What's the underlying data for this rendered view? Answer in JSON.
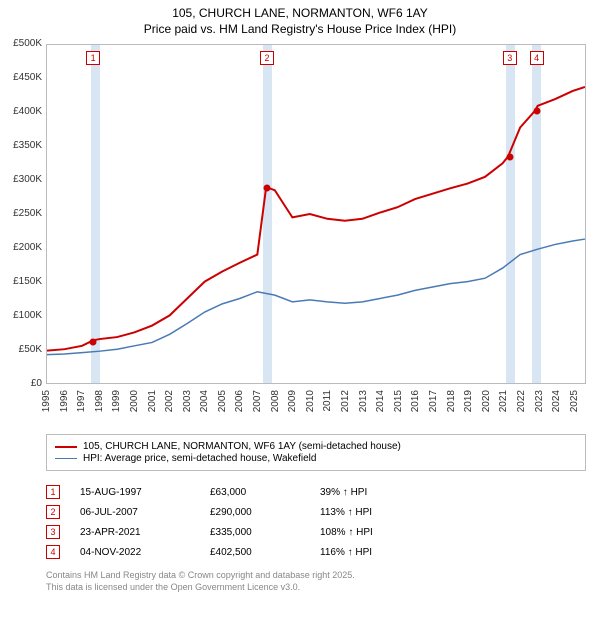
{
  "title_line1": "105, CHURCH LANE, NORMANTON, WF6 1AY",
  "title_line2": "Price paid vs. HM Land Registry's House Price Index (HPI)",
  "chart": {
    "type": "line",
    "x_min": 1995,
    "x_max": 2025.7,
    "y_min": 0,
    "y_max": 500000,
    "y_ticks": [
      0,
      50000,
      100000,
      150000,
      200000,
      250000,
      300000,
      350000,
      400000,
      450000,
      500000
    ],
    "y_tick_labels": [
      "£0",
      "£50K",
      "£100K",
      "£150K",
      "£200K",
      "£250K",
      "£300K",
      "£350K",
      "£400K",
      "£450K",
      "£500K"
    ],
    "x_ticks": [
      1995,
      1996,
      1997,
      1998,
      1999,
      2000,
      2001,
      2002,
      2003,
      2004,
      2005,
      2006,
      2007,
      2008,
      2009,
      2010,
      2011,
      2012,
      2013,
      2014,
      2015,
      2016,
      2017,
      2018,
      2019,
      2020,
      2021,
      2022,
      2023,
      2024,
      2025
    ],
    "series_red": {
      "label": "105, CHURCH LANE, NORMANTON, WF6 1AY (semi-detached house)",
      "color": "#cc0000",
      "width": 2,
      "data": [
        [
          1995,
          48000
        ],
        [
          1996,
          50000
        ],
        [
          1997,
          55000
        ],
        [
          1997.62,
          63000
        ],
        [
          1998,
          65000
        ],
        [
          1999,
          68000
        ],
        [
          2000,
          75000
        ],
        [
          2001,
          85000
        ],
        [
          2002,
          100000
        ],
        [
          2003,
          125000
        ],
        [
          2004,
          150000
        ],
        [
          2005,
          165000
        ],
        [
          2006,
          178000
        ],
        [
          2007,
          190000
        ],
        [
          2007.51,
          290000
        ],
        [
          2008,
          285000
        ],
        [
          2008.5,
          265000
        ],
        [
          2009,
          245000
        ],
        [
          2010,
          250000
        ],
        [
          2011,
          243000
        ],
        [
          2012,
          240000
        ],
        [
          2013,
          243000
        ],
        [
          2014,
          252000
        ],
        [
          2015,
          260000
        ],
        [
          2016,
          272000
        ],
        [
          2017,
          280000
        ],
        [
          2018,
          288000
        ],
        [
          2019,
          295000
        ],
        [
          2020,
          305000
        ],
        [
          2021,
          325000
        ],
        [
          2021.31,
          335000
        ],
        [
          2022,
          378000
        ],
        [
          2022.84,
          402500
        ],
        [
          2023,
          410000
        ],
        [
          2024,
          420000
        ],
        [
          2025,
          432000
        ],
        [
          2025.7,
          438000
        ]
      ]
    },
    "series_blue": {
      "label": "HPI: Average price, semi-detached house, Wakefield",
      "color": "#4a7ab5",
      "width": 1.5,
      "data": [
        [
          1995,
          42000
        ],
        [
          1996,
          43000
        ],
        [
          1997,
          45000
        ],
        [
          1998,
          47000
        ],
        [
          1999,
          50000
        ],
        [
          2000,
          55000
        ],
        [
          2001,
          60000
        ],
        [
          2002,
          72000
        ],
        [
          2003,
          88000
        ],
        [
          2004,
          105000
        ],
        [
          2005,
          117000
        ],
        [
          2006,
          125000
        ],
        [
          2007,
          135000
        ],
        [
          2008,
          130000
        ],
        [
          2009,
          120000
        ],
        [
          2010,
          123000
        ],
        [
          2011,
          120000
        ],
        [
          2012,
          118000
        ],
        [
          2013,
          120000
        ],
        [
          2014,
          125000
        ],
        [
          2015,
          130000
        ],
        [
          2016,
          137000
        ],
        [
          2017,
          142000
        ],
        [
          2018,
          147000
        ],
        [
          2019,
          150000
        ],
        [
          2020,
          155000
        ],
        [
          2021,
          170000
        ],
        [
          2022,
          190000
        ],
        [
          2023,
          198000
        ],
        [
          2024,
          205000
        ],
        [
          2025,
          210000
        ],
        [
          2025.7,
          213000
        ]
      ]
    },
    "markers": [
      {
        "n": "1",
        "year": 1997.62,
        "price": 63000,
        "band_start": 1997.5,
        "band_end": 1998.0
      },
      {
        "n": "2",
        "year": 2007.51,
        "price": 290000,
        "band_start": 2007.3,
        "band_end": 2007.8
      },
      {
        "n": "3",
        "year": 2021.31,
        "price": 335000,
        "band_start": 2021.1,
        "band_end": 2021.6
      },
      {
        "n": "4",
        "year": 2022.84,
        "price": 402500,
        "band_start": 2022.6,
        "band_end": 2023.1
      }
    ],
    "band_color": "#d8e5f3",
    "axis_color": "#bbbbbb",
    "background": "#ffffff",
    "font_size_axis": 10
  },
  "legend": {
    "rows": [
      {
        "color": "#cc0000",
        "width": 2,
        "label": "105, CHURCH LANE, NORMANTON, WF6 1AY (semi-detached house)"
      },
      {
        "color": "#4a7ab5",
        "width": 1.5,
        "label": "HPI: Average price, semi-detached house, Wakefield"
      }
    ]
  },
  "transactions": [
    {
      "n": "1",
      "date": "15-AUG-1997",
      "price": "£63,000",
      "hpi": "39% ↑ HPI"
    },
    {
      "n": "2",
      "date": "06-JUL-2007",
      "price": "£290,000",
      "hpi": "113% ↑ HPI"
    },
    {
      "n": "3",
      "date": "23-APR-2021",
      "price": "£335,000",
      "hpi": "108% ↑ HPI"
    },
    {
      "n": "4",
      "date": "04-NOV-2022",
      "price": "£402,500",
      "hpi": "116% ↑ HPI"
    }
  ],
  "footer_line1": "Contains HM Land Registry data © Crown copyright and database right 2025.",
  "footer_line2": "This data is licensed under the Open Government Licence v3.0."
}
